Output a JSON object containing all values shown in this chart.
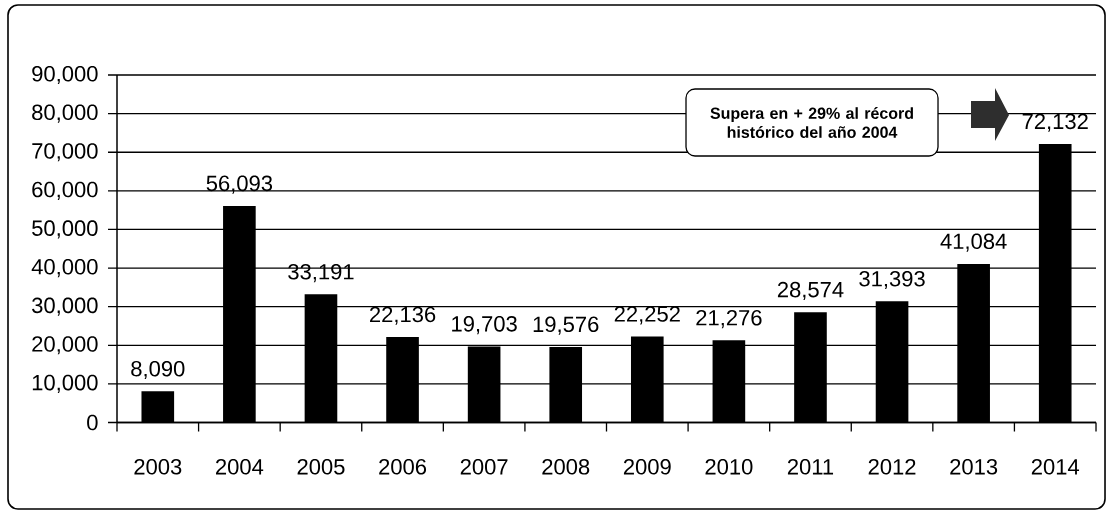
{
  "chart_data": {
    "type": "bar",
    "categories": [
      "2003",
      "2004",
      "2005",
      "2006",
      "2007",
      "2008",
      "2009",
      "2010",
      "2011",
      "2012",
      "2013",
      "2014"
    ],
    "values": [
      8090,
      56093,
      33191,
      22136,
      19703,
      19576,
      22252,
      21276,
      28574,
      31393,
      41084,
      72132
    ],
    "value_labels": [
      "8,090",
      "56,093",
      "33,191",
      "22,136",
      "19,703",
      "19,576",
      "22,252",
      "21,276",
      "28,574",
      "31,393",
      "41,084",
      "72,132"
    ],
    "color": "#000000",
    "ylim": [
      0,
      90000
    ],
    "yticks": [
      0,
      {
        "value": 10000,
        "label": "10,000"
      },
      {
        "value": 20000,
        "label": "20,000"
      },
      {
        "value": 30000,
        "label": "30,000"
      },
      {
        "value": 40000,
        "label": "40,000"
      },
      {
        "value": 50000,
        "label": "50,000"
      },
      {
        "value": 60000,
        "label": "60,000"
      },
      {
        "value": 70000,
        "label": "70,000"
      },
      {
        "value": 80000,
        "label": "80,000"
      },
      {
        "value": 90000,
        "label": "90,000"
      }
    ],
    "grid": "y",
    "annotations": [
      "Supera en + 29% al récord histórico del año 2004"
    ]
  }
}
